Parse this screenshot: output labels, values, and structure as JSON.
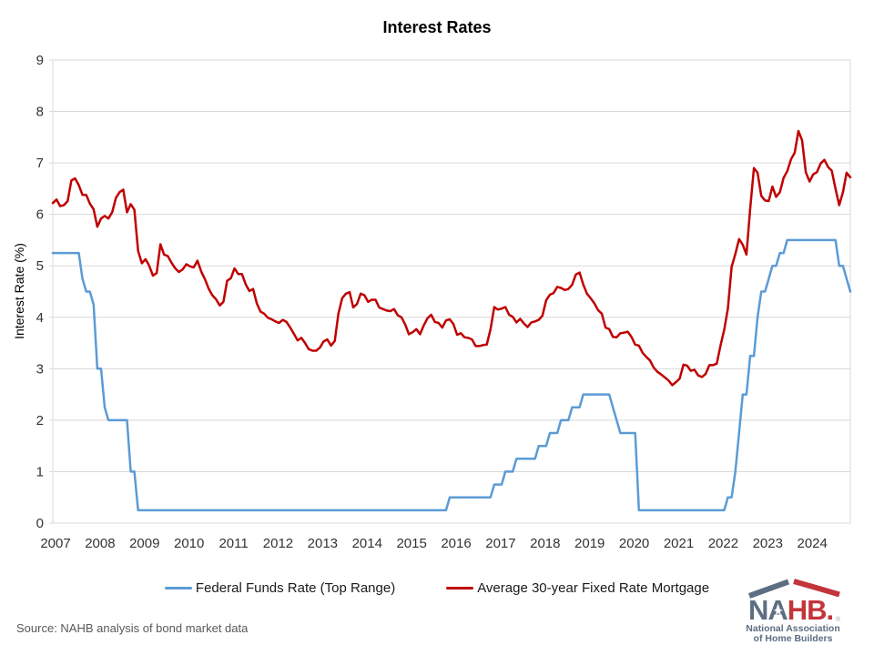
{
  "title": "Interest Rates",
  "y_axis_title": "Interest Rate (%)",
  "source_note": "Source: NAHB analysis of bond market data",
  "legend": [
    {
      "label": "Federal Funds Rate (Top Range)",
      "color": "#5B9BD5"
    },
    {
      "label": "Average 30-year Fixed Rate Mortgage",
      "color": "#C00000"
    }
  ],
  "logo": {
    "acronym_left": "NA",
    "acronym_right": "HB.",
    "star": "★",
    "reg_mark": "®",
    "line1": "National Association",
    "line2": "of Home Builders",
    "slate_color": "#5C6E81",
    "red_color": "#C2353B"
  },
  "chart_data": {
    "type": "line",
    "title": "Interest Rates",
    "xlabel": "",
    "ylabel": "Interest Rate (%)",
    "ylim": [
      0,
      9
    ],
    "y_ticks": [
      0,
      1,
      2,
      3,
      4,
      5,
      6,
      7,
      8,
      9
    ],
    "x_tick_years": [
      "2007",
      "2008",
      "2009",
      "2010",
      "2011",
      "2012",
      "2013",
      "2014",
      "2015",
      "2016",
      "2017",
      "2018",
      "2019",
      "2020",
      "2021",
      "2022",
      "2023",
      "2024"
    ],
    "frequency": "monthly",
    "x_start": "2007-01",
    "x_end": "2024-12",
    "grid": "horizontal",
    "legend_position": "bottom",
    "grid_color": "#D9D9D9",
    "tick_label_color": "#333333",
    "line_width": 2.5,
    "series": [
      {
        "name": "Federal Funds Rate (Top Range)",
        "color": "#5B9BD5",
        "values": [
          5.25,
          5.25,
          5.25,
          5.25,
          5.25,
          5.25,
          5.25,
          5.25,
          4.75,
          4.5,
          4.5,
          4.25,
          3,
          3,
          2.25,
          2,
          2,
          2,
          2,
          2,
          2,
          1,
          1,
          0.25,
          0.25,
          0.25,
          0.25,
          0.25,
          0.25,
          0.25,
          0.25,
          0.25,
          0.25,
          0.25,
          0.25,
          0.25,
          0.25,
          0.25,
          0.25,
          0.25,
          0.25,
          0.25,
          0.25,
          0.25,
          0.25,
          0.25,
          0.25,
          0.25,
          0.25,
          0.25,
          0.25,
          0.25,
          0.25,
          0.25,
          0.25,
          0.25,
          0.25,
          0.25,
          0.25,
          0.25,
          0.25,
          0.25,
          0.25,
          0.25,
          0.25,
          0.25,
          0.25,
          0.25,
          0.25,
          0.25,
          0.25,
          0.25,
          0.25,
          0.25,
          0.25,
          0.25,
          0.25,
          0.25,
          0.25,
          0.25,
          0.25,
          0.25,
          0.25,
          0.25,
          0.25,
          0.25,
          0.25,
          0.25,
          0.25,
          0.25,
          0.25,
          0.25,
          0.25,
          0.25,
          0.25,
          0.25,
          0.25,
          0.25,
          0.25,
          0.25,
          0.25,
          0.25,
          0.25,
          0.25,
          0.25,
          0.25,
          0.25,
          0.5,
          0.5,
          0.5,
          0.5,
          0.5,
          0.5,
          0.5,
          0.5,
          0.5,
          0.5,
          0.5,
          0.5,
          0.75,
          0.75,
          0.75,
          1,
          1,
          1,
          1.25,
          1.25,
          1.25,
          1.25,
          1.25,
          1.25,
          1.5,
          1.5,
          1.5,
          1.75,
          1.75,
          1.75,
          2,
          2,
          2,
          2.25,
          2.25,
          2.25,
          2.5,
          2.5,
          2.5,
          2.5,
          2.5,
          2.5,
          2.5,
          2.5,
          2.25,
          2,
          1.75,
          1.75,
          1.75,
          1.75,
          1.75,
          0.25,
          0.25,
          0.25,
          0.25,
          0.25,
          0.25,
          0.25,
          0.25,
          0.25,
          0.25,
          0.25,
          0.25,
          0.25,
          0.25,
          0.25,
          0.25,
          0.25,
          0.25,
          0.25,
          0.25,
          0.25,
          0.25,
          0.25,
          0.25,
          0.5,
          0.5,
          1,
          1.75,
          2.5,
          2.5,
          3.25,
          3.25,
          4,
          4.5,
          4.5,
          4.75,
          5,
          5,
          5.25,
          5.25,
          5.5,
          5.5,
          5.5,
          5.5,
          5.5,
          5.5,
          5.5,
          5.5,
          5.5,
          5.5,
          5.5,
          5.5,
          5.5,
          5.5,
          5,
          5,
          4.75,
          4.5
        ]
      },
      {
        "name": "Average 30-year Fixed Rate Mortgage",
        "color": "#C00000",
        "values": [
          6.22,
          6.29,
          6.16,
          6.18,
          6.26,
          6.66,
          6.7,
          6.57,
          6.38,
          6.38,
          6.21,
          6.1,
          5.76,
          5.92,
          5.97,
          5.92,
          6.04,
          6.32,
          6.43,
          6.48,
          6.04,
          6.2,
          6.09,
          5.29,
          5.05,
          5.13,
          5.0,
          4.81,
          4.86,
          5.42,
          5.22,
          5.19,
          5.06,
          4.95,
          4.88,
          4.93,
          5.03,
          4.99,
          4.97,
          5.1,
          4.89,
          4.74,
          4.56,
          4.43,
          4.35,
          4.23,
          4.3,
          4.71,
          4.76,
          4.95,
          4.84,
          4.84,
          4.64,
          4.51,
          4.55,
          4.27,
          4.11,
          4.07,
          3.99,
          3.96,
          3.92,
          3.89,
          3.95,
          3.91,
          3.8,
          3.68,
          3.55,
          3.6,
          3.5,
          3.38,
          3.35,
          3.35,
          3.41,
          3.53,
          3.57,
          3.45,
          3.54,
          4.07,
          4.37,
          4.46,
          4.49,
          4.19,
          4.26,
          4.46,
          4.43,
          4.3,
          4.34,
          4.34,
          4.19,
          4.16,
          4.13,
          4.12,
          4.16,
          4.04,
          4.0,
          3.86,
          3.67,
          3.71,
          3.77,
          3.67,
          3.84,
          3.98,
          4.05,
          3.91,
          3.89,
          3.8,
          3.94,
          3.96,
          3.87,
          3.66,
          3.69,
          3.61,
          3.6,
          3.57,
          3.44,
          3.44,
          3.46,
          3.47,
          3.77,
          4.2,
          4.15,
          4.17,
          4.2,
          4.05,
          4.01,
          3.9,
          3.97,
          3.88,
          3.81,
          3.9,
          3.92,
          3.95,
          4.03,
          4.33,
          4.44,
          4.47,
          4.59,
          4.57,
          4.53,
          4.55,
          4.63,
          4.83,
          4.87,
          4.64,
          4.46,
          4.37,
          4.27,
          4.14,
          4.07,
          3.8,
          3.77,
          3.62,
          3.61,
          3.69,
          3.7,
          3.72,
          3.62,
          3.47,
          3.45,
          3.31,
          3.23,
          3.16,
          3.02,
          2.94,
          2.89,
          2.83,
          2.77,
          2.68,
          2.74,
          2.81,
          3.08,
          3.06,
          2.96,
          2.98,
          2.87,
          2.84,
          2.9,
          3.07,
          3.07,
          3.1,
          3.45,
          3.76,
          4.17,
          4.98,
          5.23,
          5.52,
          5.41,
          5.22,
          6.11,
          6.9,
          6.81,
          6.36,
          6.27,
          6.26,
          6.54,
          6.34,
          6.43,
          6.71,
          6.84,
          7.07,
          7.2,
          7.62,
          7.44,
          6.82,
          6.64,
          6.78,
          6.82,
          6.99,
          7.06,
          6.92,
          6.85,
          6.5,
          6.18,
          6.43,
          6.81,
          6.72
        ]
      }
    ]
  }
}
